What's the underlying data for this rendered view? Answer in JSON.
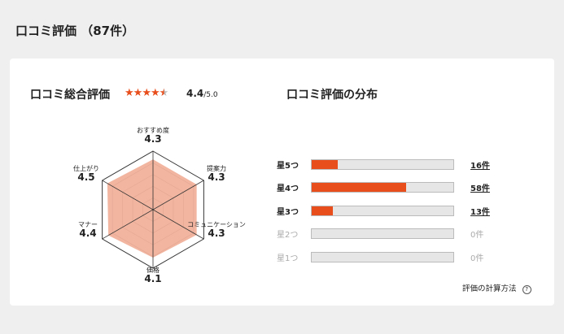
{
  "page_title": "口コミ評価 （87件）",
  "summary": {
    "heading": "口コミ総合評価",
    "rating": "4.4",
    "rating_max": "/5.0",
    "rating_value": 4.4,
    "accent_color": "#e84e1b"
  },
  "radar": {
    "max": 5,
    "axes": [
      {
        "label": "おすすめ度",
        "value": "4.3"
      },
      {
        "label": "提案力",
        "value": "4.3"
      },
      {
        "label": "コミュニケーション",
        "value": "4.3"
      },
      {
        "label": "価格",
        "value": "4.1"
      },
      {
        "label": "マナー",
        "value": "4.4"
      },
      {
        "label": "仕上がり",
        "value": "4.5"
      }
    ]
  },
  "distribution": {
    "heading": "口コミ評価の分布",
    "total": 87,
    "rows": [
      {
        "label": "星5つ",
        "count": 16,
        "count_label": "16件"
      },
      {
        "label": "星4つ",
        "count": 58,
        "count_label": "58件"
      },
      {
        "label": "星3つ",
        "count": 13,
        "count_label": "13件"
      },
      {
        "label": "星2つ",
        "count": 0,
        "count_label": "0件"
      },
      {
        "label": "星1つ",
        "count": 0,
        "count_label": "0件"
      }
    ]
  },
  "calc_link": "評価の計算方法",
  "help_icon": "question-circle-icon"
}
